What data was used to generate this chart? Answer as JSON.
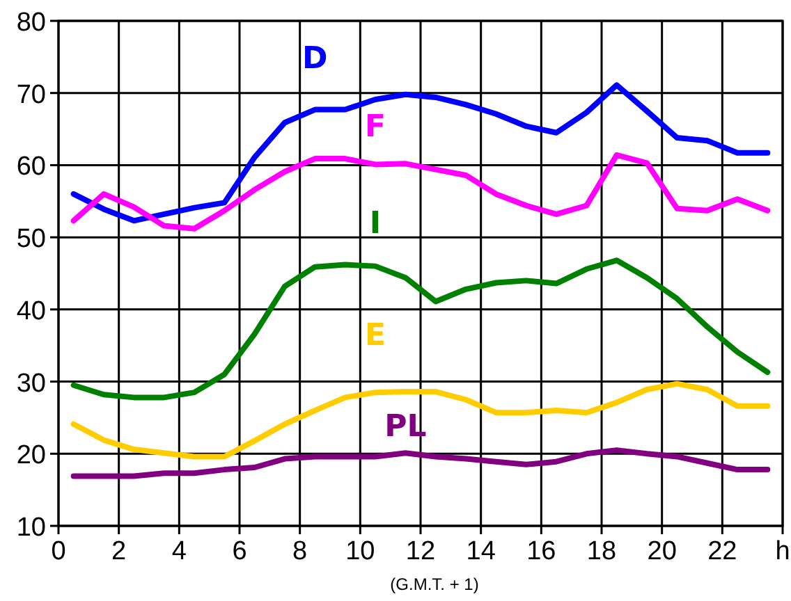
{
  "chart_data": {
    "type": "line",
    "x": [
      0.5,
      1.5,
      2.5,
      3.5,
      4.5,
      5.5,
      6.5,
      7.5,
      8.5,
      9.5,
      10.5,
      11.5,
      12.5,
      13.5,
      14.5,
      15.5,
      16.5,
      17.5,
      18.5,
      19.5,
      20.5,
      21.5,
      22.5,
      23.5
    ],
    "series": [
      {
        "name": "D",
        "color": "#0000ff",
        "values": [
          56.0,
          53.9,
          52.3,
          53.2,
          54.1,
          54.8,
          61.1,
          65.9,
          67.7,
          67.7,
          69.1,
          69.8,
          69.4,
          68.4,
          67.1,
          65.4,
          64.5,
          67.3,
          71.1,
          67.5,
          63.8,
          63.4,
          61.7,
          61.7
        ]
      },
      {
        "name": "F",
        "color": "#ff00ff",
        "values": [
          52.3,
          56.0,
          54.2,
          51.6,
          51.2,
          53.7,
          56.6,
          59.1,
          60.9,
          60.9,
          60.1,
          60.2,
          59.4,
          58.6,
          56.0,
          54.4,
          53.2,
          54.4,
          61.4,
          60.3,
          54.0,
          53.7,
          55.3,
          53.7
        ]
      },
      {
        "name": "I",
        "color": "#008000",
        "values": [
          29.5,
          28.2,
          27.8,
          27.8,
          28.5,
          31.0,
          36.6,
          43.2,
          45.9,
          46.2,
          46.0,
          44.4,
          41.1,
          42.8,
          43.7,
          44.0,
          43.6,
          45.6,
          46.8,
          44.4,
          41.5,
          37.6,
          34.1,
          31.3
        ]
      },
      {
        "name": "E",
        "color": "#ffcc00",
        "values": [
          24.1,
          21.9,
          20.6,
          20.1,
          19.6,
          19.6,
          21.8,
          24.1,
          26.0,
          27.8,
          28.5,
          28.6,
          28.6,
          27.5,
          25.7,
          25.7,
          26.0,
          25.7,
          27.1,
          28.9,
          29.7,
          28.9,
          26.6,
          26.6
        ]
      },
      {
        "name": "PL",
        "color": "#800080",
        "values": [
          16.9,
          16.9,
          16.9,
          17.3,
          17.3,
          17.8,
          18.1,
          19.3,
          19.6,
          19.6,
          19.6,
          20.1,
          19.6,
          19.3,
          18.9,
          18.5,
          18.9,
          20.0,
          20.5,
          20.0,
          19.6,
          18.7,
          17.8,
          17.8
        ]
      }
    ],
    "xlim": [
      0,
      24
    ],
    "xticks": [
      0,
      2,
      4,
      6,
      8,
      10,
      12,
      14,
      16,
      18,
      20,
      22,
      {
        "value": 24,
        "label": "h"
      }
    ],
    "ylim": [
      10,
      80
    ],
    "yticks": [
      10,
      20,
      30,
      40,
      50,
      60,
      70,
      80
    ],
    "grid": true,
    "line_style": "solid",
    "annotations": [
      "(G.M.T. + 1)"
    ]
  }
}
